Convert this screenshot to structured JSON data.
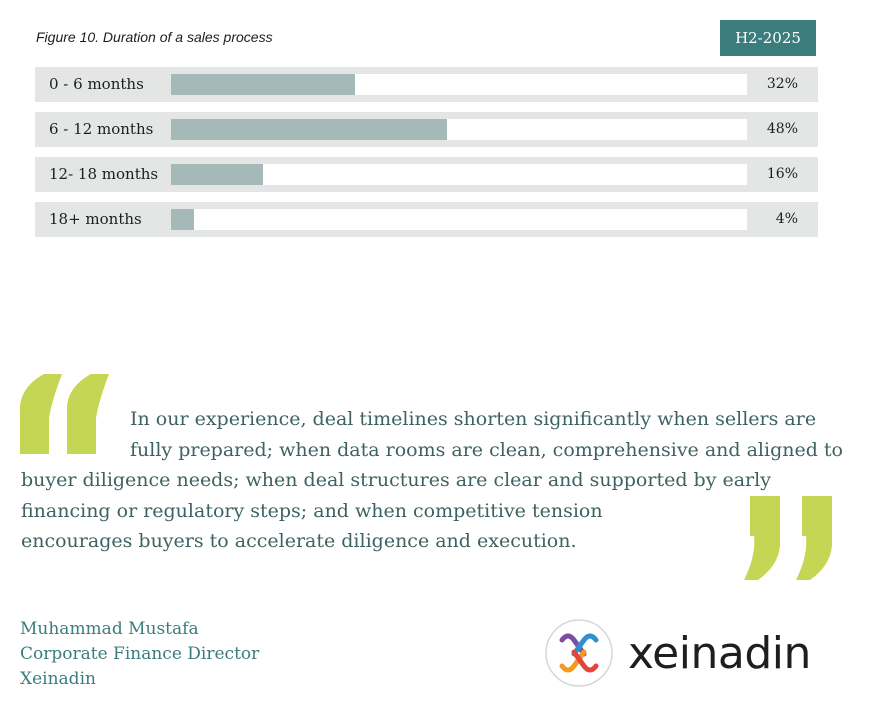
{
  "figure": {
    "title": "Figure 10. Duration of a sales process",
    "period": "H2-2025"
  },
  "chart_data": {
    "type": "bar",
    "orientation": "horizontal",
    "title": "Figure 10. Duration of a sales process",
    "legend": "H2-2025",
    "categories": [
      "0 - 6 months",
      "6 - 12 months",
      "12- 18 months",
      "18+ months"
    ],
    "values": [
      32,
      48,
      16,
      4
    ],
    "value_labels": [
      "32%",
      "48%",
      "16%",
      "4%"
    ],
    "xlim": [
      0,
      100
    ],
    "unit": "%",
    "colors": {
      "fill": "#a6b9b9",
      "track": "#ffffff",
      "row": "#e3e6e5"
    }
  },
  "quote": {
    "lines": [
      "In our experience, deal timelines shorten significantly when sellers are",
      "fully prepared; when data rooms are clean, comprehensive and aligned to",
      "buyer diligence needs; when deal structures are clear and supported by early",
      "financing or regulatory steps; and when competitive tension",
      "encourages buyers to accelerate diligence and execution."
    ],
    "mark_color": "#c4d653"
  },
  "author": {
    "name": "Muhammad Mustafa",
    "role": "Corporate Finance Director",
    "company": "Xeinadin"
  },
  "logo": {
    "text": "xeinadin",
    "icon": "xeinadin-logo-icon"
  },
  "colors": {
    "accent": "#3b7c7c",
    "quote_text": "#3e6262"
  }
}
